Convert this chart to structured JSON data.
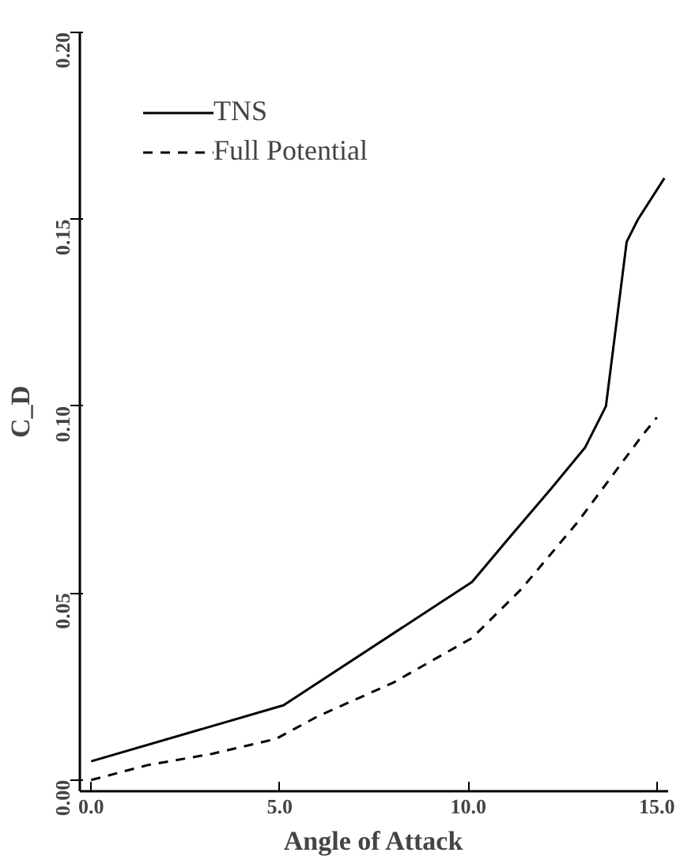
{
  "chart_data": {
    "type": "line",
    "xlabel": "Angle of Attack",
    "ylabel": "C_D",
    "xlim": [
      -0.3,
      15.3
    ],
    "ylim": [
      -0.003,
      0.2
    ],
    "xticks": [
      {
        "value": 0,
        "label": "0.0"
      },
      {
        "value": 5,
        "label": "5.0"
      },
      {
        "value": 10,
        "label": "10.0"
      },
      {
        "value": 15,
        "label": "15.0"
      }
    ],
    "yticks": [
      {
        "value": 0,
        "label": "0.00"
      },
      {
        "value": 0.05,
        "label": "0.05"
      },
      {
        "value": 0.1,
        "label": "0.10"
      },
      {
        "value": 0.15,
        "label": "0.15"
      },
      {
        "value": 0.2,
        "label": "0.20"
      }
    ],
    "grid": false,
    "legend": "top left",
    "marker": "none",
    "series": [
      {
        "name": "TNS",
        "color": "#000000",
        "line_style": "solid",
        "x": [
          0,
          5.1,
          10.1,
          11.1,
          12.2,
          13.1,
          13.65,
          14.05,
          14.2,
          14.5,
          15.2
        ],
        "values": [
          0.005,
          0.02,
          0.053,
          0.065,
          0.078,
          0.089,
          0.1,
          0.132,
          0.144,
          0.15,
          0.161
        ]
      },
      {
        "name": "Full Potential",
        "color": "#000000",
        "line_style": "dashed",
        "x": [
          0,
          1.5,
          3.2,
          4.9,
          6.0,
          8.0,
          10.1,
          11.4,
          12.9,
          14.6,
          15.0
        ],
        "values": [
          0,
          0.004,
          0.007,
          0.011,
          0.017,
          0.026,
          0.038,
          0.051,
          0.069,
          0.092,
          0.097
        ]
      }
    ]
  }
}
